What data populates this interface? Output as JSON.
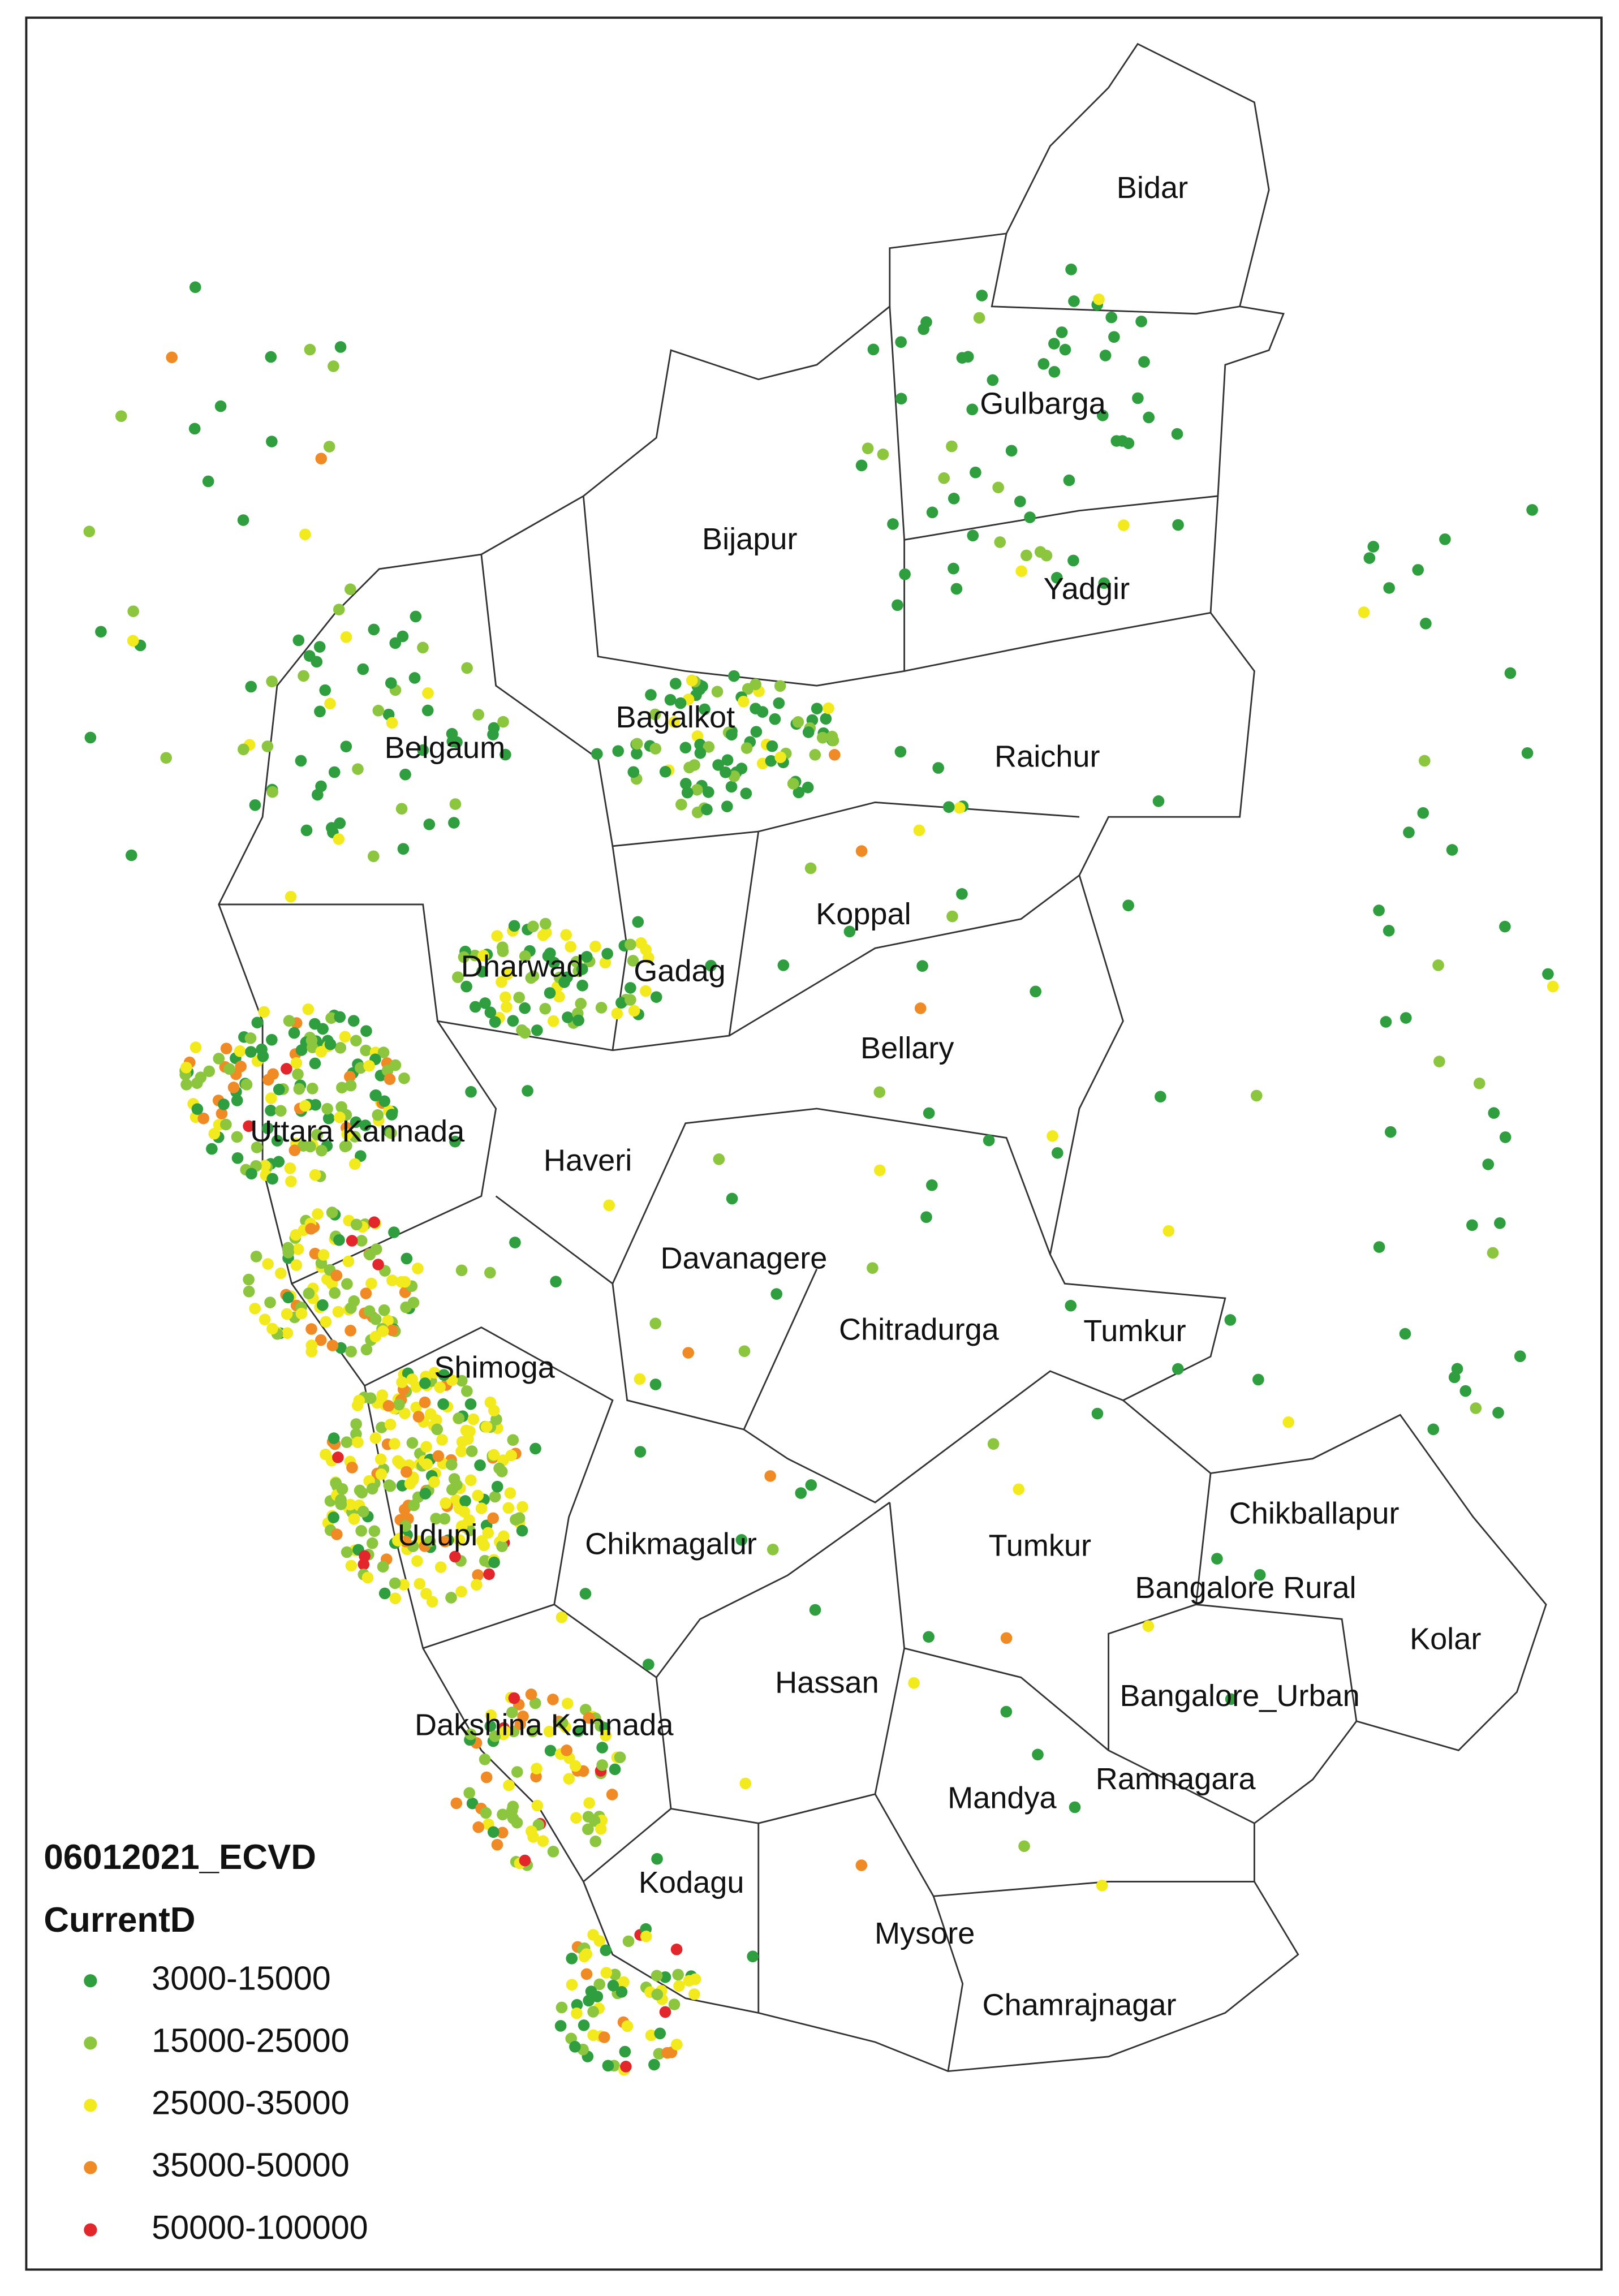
{
  "map": {
    "districts": [
      "Bidar",
      "Gulbarga",
      "Bijapur",
      "Yadgir",
      "Bagalkot",
      "Raichur",
      "Belgaum",
      "Koppal",
      "Dharwad",
      "Gadag",
      "Bellary",
      "Uttara Kannada",
      "Haveri",
      "Davanagere",
      "Chitradurga",
      "Tumkur",
      "Shimoga",
      "Chikballapur",
      "Udupi",
      "Chikmagalur",
      "Tumkur",
      "Bangalore Rural",
      "Kolar",
      "Hassan",
      "Bangalore_Urban",
      "Dakshina Kannada",
      "Mandya",
      "Ramnagara",
      "Kodagu",
      "Mysore",
      "Chamrajnagar"
    ],
    "legend": {
      "title": "06012021_ECVD",
      "field": "CurrentD",
      "classes": [
        {
          "label": "3000-15000",
          "color": "#2e9e3e"
        },
        {
          "label": "15000-25000",
          "color": "#8cc63f"
        },
        {
          "label": "25000-35000",
          "color": "#f2ea1d"
        },
        {
          "label": "35000-50000",
          "color": "#f08a24"
        },
        {
          "label": "50000-100000",
          "color": "#e3262b"
        }
      ]
    }
  }
}
